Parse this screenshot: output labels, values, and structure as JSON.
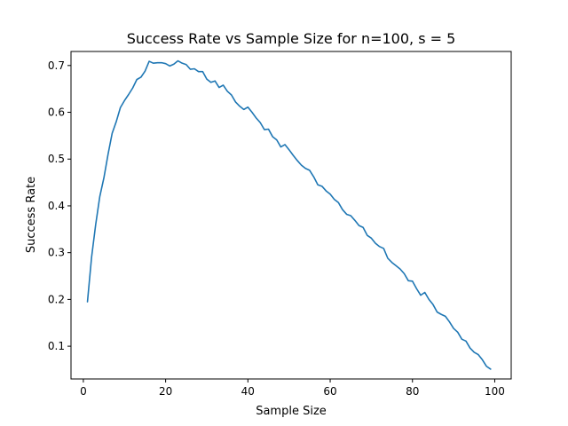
{
  "chart_data": {
    "type": "line",
    "title": "Success Rate vs Sample Size for n=100, s = 5",
    "xlabel": "Sample Size",
    "ylabel": "Success Rate",
    "xlim": [
      -3,
      104
    ],
    "ylim": [
      0.03,
      0.73
    ],
    "xticks": [
      0,
      20,
      40,
      60,
      80,
      100
    ],
    "yticks": [
      0.1,
      0.2,
      0.3,
      0.4,
      0.5,
      0.6,
      0.7
    ],
    "grid": false,
    "legend": "none",
    "series": [
      {
        "color": "#1f77b4",
        "x": [
          1,
          2,
          3,
          4,
          5,
          6,
          7,
          8,
          9,
          10,
          11,
          12,
          13,
          14,
          15,
          16,
          17,
          18,
          19,
          20,
          21,
          22,
          23,
          24,
          25,
          26,
          27,
          28,
          29,
          30,
          31,
          32,
          33,
          34,
          35,
          36,
          37,
          38,
          39,
          40,
          41,
          42,
          43,
          44,
          45,
          46,
          47,
          48,
          49,
          50,
          51,
          52,
          53,
          54,
          55,
          56,
          57,
          58,
          59,
          60,
          61,
          62,
          63,
          64,
          65,
          66,
          67,
          68,
          69,
          70,
          71,
          72,
          73,
          74,
          75,
          76,
          77,
          78,
          79,
          80,
          81,
          82,
          83,
          84,
          85,
          86,
          87,
          88,
          89,
          90,
          91,
          92,
          93,
          94,
          95,
          96,
          97,
          98,
          99
        ],
        "y": [
          0.195,
          0.29,
          0.36,
          0.42,
          0.46,
          0.51,
          0.555,
          0.58,
          0.61,
          0.625,
          0.638,
          0.652,
          0.67,
          0.675,
          0.688,
          0.709,
          0.705,
          0.706,
          0.706,
          0.704,
          0.699,
          0.703,
          0.71,
          0.705,
          0.702,
          0.692,
          0.693,
          0.687,
          0.687,
          0.671,
          0.664,
          0.667,
          0.653,
          0.658,
          0.645,
          0.637,
          0.622,
          0.613,
          0.606,
          0.611,
          0.6,
          0.588,
          0.578,
          0.563,
          0.564,
          0.548,
          0.541,
          0.526,
          0.531,
          0.52,
          0.508,
          0.497,
          0.487,
          0.48,
          0.476,
          0.462,
          0.445,
          0.442,
          0.432,
          0.425,
          0.414,
          0.407,
          0.392,
          0.382,
          0.379,
          0.369,
          0.358,
          0.354,
          0.337,
          0.331,
          0.32,
          0.313,
          0.309,
          0.288,
          0.279,
          0.272,
          0.265,
          0.255,
          0.24,
          0.239,
          0.223,
          0.209,
          0.215,
          0.2,
          0.189,
          0.173,
          0.168,
          0.164,
          0.152,
          0.138,
          0.13,
          0.115,
          0.111,
          0.096,
          0.087,
          0.082,
          0.071,
          0.057,
          0.051
        ]
      }
    ]
  }
}
